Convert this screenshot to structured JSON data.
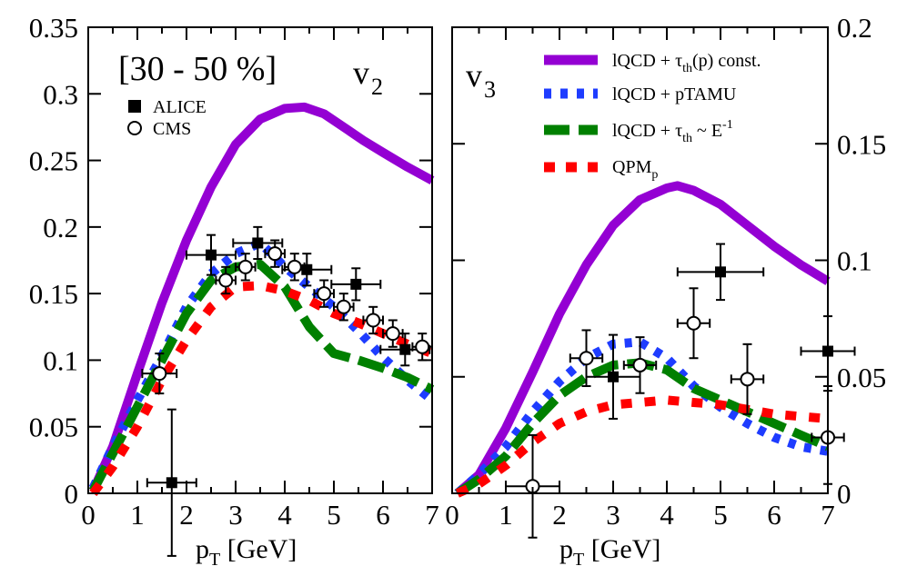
{
  "chart_data": [
    {
      "type": "line",
      "panel": "left",
      "label": "v2",
      "centrality": "[30 - 50 %]",
      "xlabel": "pT [GeV]",
      "ylabel": "",
      "xlim": [
        0,
        7
      ],
      "ylim": [
        0,
        0.35
      ],
      "x_tick_labels": [
        "0",
        "1",
        "2",
        "3",
        "4",
        "5",
        "6",
        "7"
      ],
      "y_tick_labels": [
        "0",
        "0.05",
        "0.1",
        "0.15",
        "0.2",
        "0.25",
        "0.3",
        "0.35"
      ],
      "legend": {
        "position": "top-left",
        "entries": [
          {
            "name": "ALICE",
            "marker": "filled-square"
          },
          {
            "name": "CMS",
            "marker": "open-circle"
          }
        ]
      },
      "series": [
        {
          "name": "lQCD + τth(p) const.",
          "color": "#9400D3",
          "style": "solid",
          "x": [
            0.1,
            0.5,
            1.0,
            1.5,
            2.0,
            2.5,
            3.0,
            3.5,
            4.0,
            4.4,
            4.8,
            5.2,
            5.6,
            6.0,
            6.5,
            7.0
          ],
          "y": [
            0.002,
            0.035,
            0.09,
            0.143,
            0.19,
            0.23,
            0.262,
            0.281,
            0.289,
            0.29,
            0.285,
            0.275,
            0.265,
            0.256,
            0.245,
            0.235
          ]
        },
        {
          "name": "lQCD + pTAMU",
          "color": "#1E3CFF",
          "style": "dotted",
          "x": [
            0.1,
            0.5,
            1.0,
            1.5,
            2.0,
            2.5,
            3.0,
            3.5,
            4.0,
            4.5,
            5.0,
            5.5,
            6.0,
            6.5,
            7.0
          ],
          "y": [
            0.004,
            0.035,
            0.07,
            0.103,
            0.14,
            0.165,
            0.18,
            0.188,
            0.17,
            0.155,
            0.14,
            0.122,
            0.102,
            0.085,
            0.07
          ]
        },
        {
          "name": "lQCD + τth ~ E^-1",
          "color": "#008000",
          "style": "dashed",
          "x": [
            0.1,
            0.5,
            1.0,
            1.5,
            2.0,
            2.5,
            3.0,
            3.5,
            4.0,
            4.5,
            5.0,
            5.5,
            6.0,
            6.5,
            7.0
          ],
          "y": [
            0.002,
            0.03,
            0.065,
            0.1,
            0.135,
            0.16,
            0.17,
            0.172,
            0.155,
            0.125,
            0.105,
            0.1,
            0.094,
            0.087,
            0.078
          ]
        },
        {
          "name": "QPMp",
          "color": "#FF0000",
          "style": "dashed",
          "x": [
            0.1,
            0.5,
            1.0,
            1.5,
            2.0,
            2.5,
            3.0,
            3.5,
            4.0,
            4.5,
            5.0,
            5.5,
            6.0,
            6.5,
            7.0
          ],
          "y": [
            0.0,
            0.02,
            0.05,
            0.085,
            0.115,
            0.14,
            0.155,
            0.156,
            0.152,
            0.145,
            0.135,
            0.128,
            0.12,
            0.112,
            0.105
          ]
        }
      ],
      "data_points": [
        {
          "name": "ALICE",
          "marker": "filled-square",
          "x": [
            1.7,
            2.5,
            3.45,
            4.45,
            5.45,
            6.45
          ],
          "y": [
            0.008,
            0.179,
            0.188,
            0.168,
            0.157,
            0.108
          ],
          "xerr": [
            0.5,
            0.5,
            0.5,
            0.5,
            0.5,
            0.5
          ],
          "yerr": [
            0.055,
            0.015,
            0.012,
            0.012,
            0.012,
            0.012
          ]
        },
        {
          "name": "CMS",
          "marker": "open-circle",
          "x": [
            1.45,
            2.8,
            3.2,
            3.8,
            4.2,
            4.8,
            5.2,
            5.8,
            6.2,
            6.8
          ],
          "y": [
            0.09,
            0.16,
            0.17,
            0.18,
            0.17,
            0.15,
            0.14,
            0.13,
            0.12,
            0.11
          ],
          "xerr": [
            0.35,
            0.2,
            0.2,
            0.2,
            0.2,
            0.2,
            0.2,
            0.2,
            0.2,
            0.2
          ],
          "yerr": [
            0.015,
            0.01,
            0.01,
            0.01,
            0.01,
            0.01,
            0.01,
            0.01,
            0.01,
            0.01
          ]
        }
      ]
    },
    {
      "type": "line",
      "panel": "right",
      "label": "v3",
      "xlabel": "pT [GeV]",
      "ylabel": "",
      "xlim": [
        0,
        7
      ],
      "ylim": [
        0,
        0.2
      ],
      "x_tick_labels": [
        "0",
        "1",
        "2",
        "3",
        "4",
        "5",
        "6",
        "7"
      ],
      "y_tick_labels": [
        "0",
        "0.05",
        "0.1",
        "0.15",
        "0.2"
      ],
      "legend": {
        "position": "top-right",
        "entries": [
          {
            "name": "lQCD + τth(p) const.",
            "color": "#9400D3",
            "style": "solid"
          },
          {
            "name": "lQCD + pTAMU",
            "color": "#1E3CFF",
            "style": "dotted"
          },
          {
            "name": "lQCD + τth ~ E^-1",
            "color": "#008000",
            "style": "dashed"
          },
          {
            "name": "QPMp",
            "color": "#FF0000",
            "style": "dashed"
          }
        ]
      },
      "series": [
        {
          "name": "lQCD + τth(p) const.",
          "color": "#9400D3",
          "style": "solid",
          "x": [
            0.1,
            0.5,
            1.0,
            1.5,
            2.0,
            2.5,
            3.0,
            3.5,
            4.0,
            4.2,
            4.5,
            5.0,
            5.5,
            6.0,
            6.5,
            7.0
          ],
          "y": [
            0.0,
            0.008,
            0.028,
            0.052,
            0.077,
            0.098,
            0.115,
            0.126,
            0.131,
            0.132,
            0.13,
            0.124,
            0.115,
            0.106,
            0.098,
            0.091
          ]
        },
        {
          "name": "lQCD + pTAMU",
          "color": "#1E3CFF",
          "style": "dotted",
          "x": [
            0.1,
            0.5,
            1.0,
            1.5,
            2.0,
            2.5,
            3.0,
            3.5,
            4.0,
            4.5,
            5.0,
            5.5,
            6.0,
            6.5,
            7.0
          ],
          "y": [
            0.0,
            0.008,
            0.02,
            0.035,
            0.048,
            0.058,
            0.064,
            0.065,
            0.058,
            0.046,
            0.037,
            0.03,
            0.024,
            0.02,
            0.018
          ]
        },
        {
          "name": "lQCD + τth ~ E^-1",
          "color": "#008000",
          "style": "dashed",
          "x": [
            0.1,
            0.5,
            1.0,
            1.5,
            2.0,
            2.5,
            3.0,
            3.5,
            4.0,
            4.5,
            5.0,
            5.5,
            6.0,
            6.5,
            7.0
          ],
          "y": [
            0.0,
            0.006,
            0.016,
            0.03,
            0.042,
            0.05,
            0.055,
            0.056,
            0.053,
            0.045,
            0.04,
            0.035,
            0.03,
            0.025,
            0.02
          ]
        },
        {
          "name": "QPMp",
          "color": "#FF0000",
          "style": "dashed",
          "x": [
            0.1,
            0.5,
            1.0,
            1.5,
            2.0,
            2.5,
            3.0,
            3.5,
            4.0,
            4.5,
            5.0,
            5.5,
            6.0,
            6.5,
            7.0
          ],
          "y": [
            0.0,
            0.004,
            0.012,
            0.022,
            0.03,
            0.035,
            0.038,
            0.039,
            0.04,
            0.039,
            0.038,
            0.036,
            0.034,
            0.033,
            0.032
          ]
        }
      ],
      "data_points": [
        {
          "name": "ALICE",
          "marker": "filled-square",
          "x": [
            3.0,
            5.0,
            7.0
          ],
          "y": [
            0.05,
            0.095,
            0.061
          ],
          "xerr": [
            0.5,
            0.8,
            0.5
          ],
          "yerr": [
            0.018,
            0.012,
            0.015
          ]
        },
        {
          "name": "CMS",
          "marker": "open-circle",
          "x": [
            1.5,
            2.5,
            3.5,
            4.5,
            5.5,
            7.0
          ],
          "y": [
            0.003,
            0.058,
            0.055,
            0.073,
            0.049,
            0.024
          ],
          "xerr": [
            0.5,
            0.3,
            0.3,
            0.3,
            0.3,
            0.3
          ],
          "yerr": [
            0.022,
            0.012,
            0.012,
            0.015,
            0.015,
            0.02
          ]
        }
      ]
    }
  ]
}
